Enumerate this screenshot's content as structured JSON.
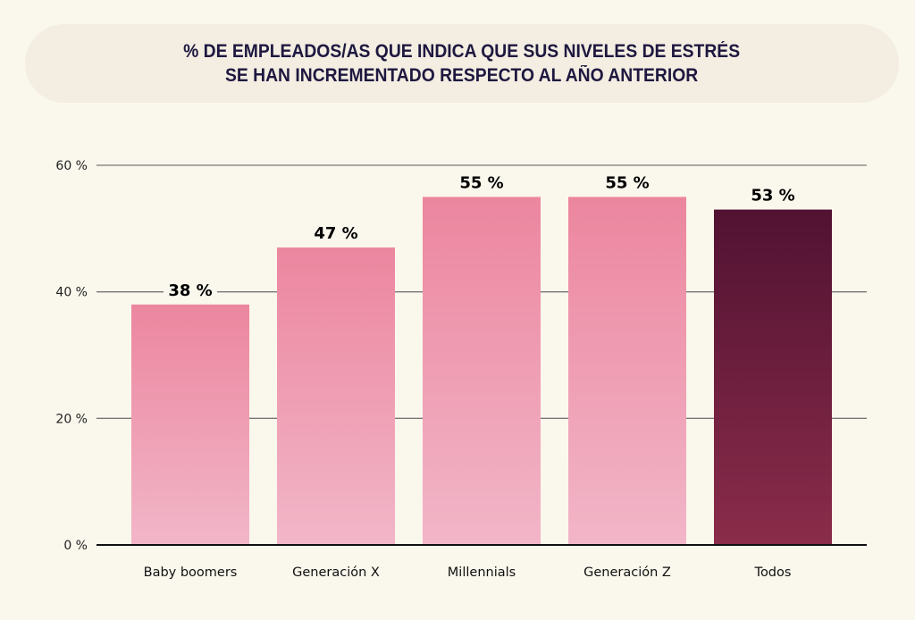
{
  "chart_data": {
    "type": "bar",
    "title": "% DE EMPLEADOS/AS QUE INDICA QUE SUS NIVELES DE ESTRÉS SE HAN INCREMENTADO RESPECTO AL AÑO ANTERIOR",
    "title_lines": [
      "% DE EMPLEADOS/AS QUE INDICA QUE SUS NIVELES DE ESTRÉS",
      "SE HAN INCREMENTADO RESPECTO AL AÑO ANTERIOR"
    ],
    "categories": [
      "Baby boomers",
      "Generación X",
      "Millennials",
      "Generación Z",
      "Todos"
    ],
    "values": [
      38,
      47,
      55,
      55,
      53
    ],
    "value_labels": [
      "38 %",
      "47 %",
      "55 %",
      "55 %",
      "53 %"
    ],
    "xlabel": "",
    "ylabel": "",
    "ylim": [
      0,
      60
    ],
    "yticks": [
      0,
      20,
      40,
      60
    ],
    "ytick_labels": [
      "0 %",
      "20 %",
      "40 %",
      "60 %"
    ],
    "grid": true,
    "legend": "none",
    "colors": {
      "default_bar_top": "#ec869f",
      "default_bar_bottom": "#f2b6c8",
      "highlight_bar_top": "#521232",
      "highlight_bar_bottom": "#8a2c4a",
      "highlight_category": "Todos",
      "title_text": "#1e1840",
      "title_background": "#f3ede2",
      "background": "#faf7ec"
    }
  }
}
